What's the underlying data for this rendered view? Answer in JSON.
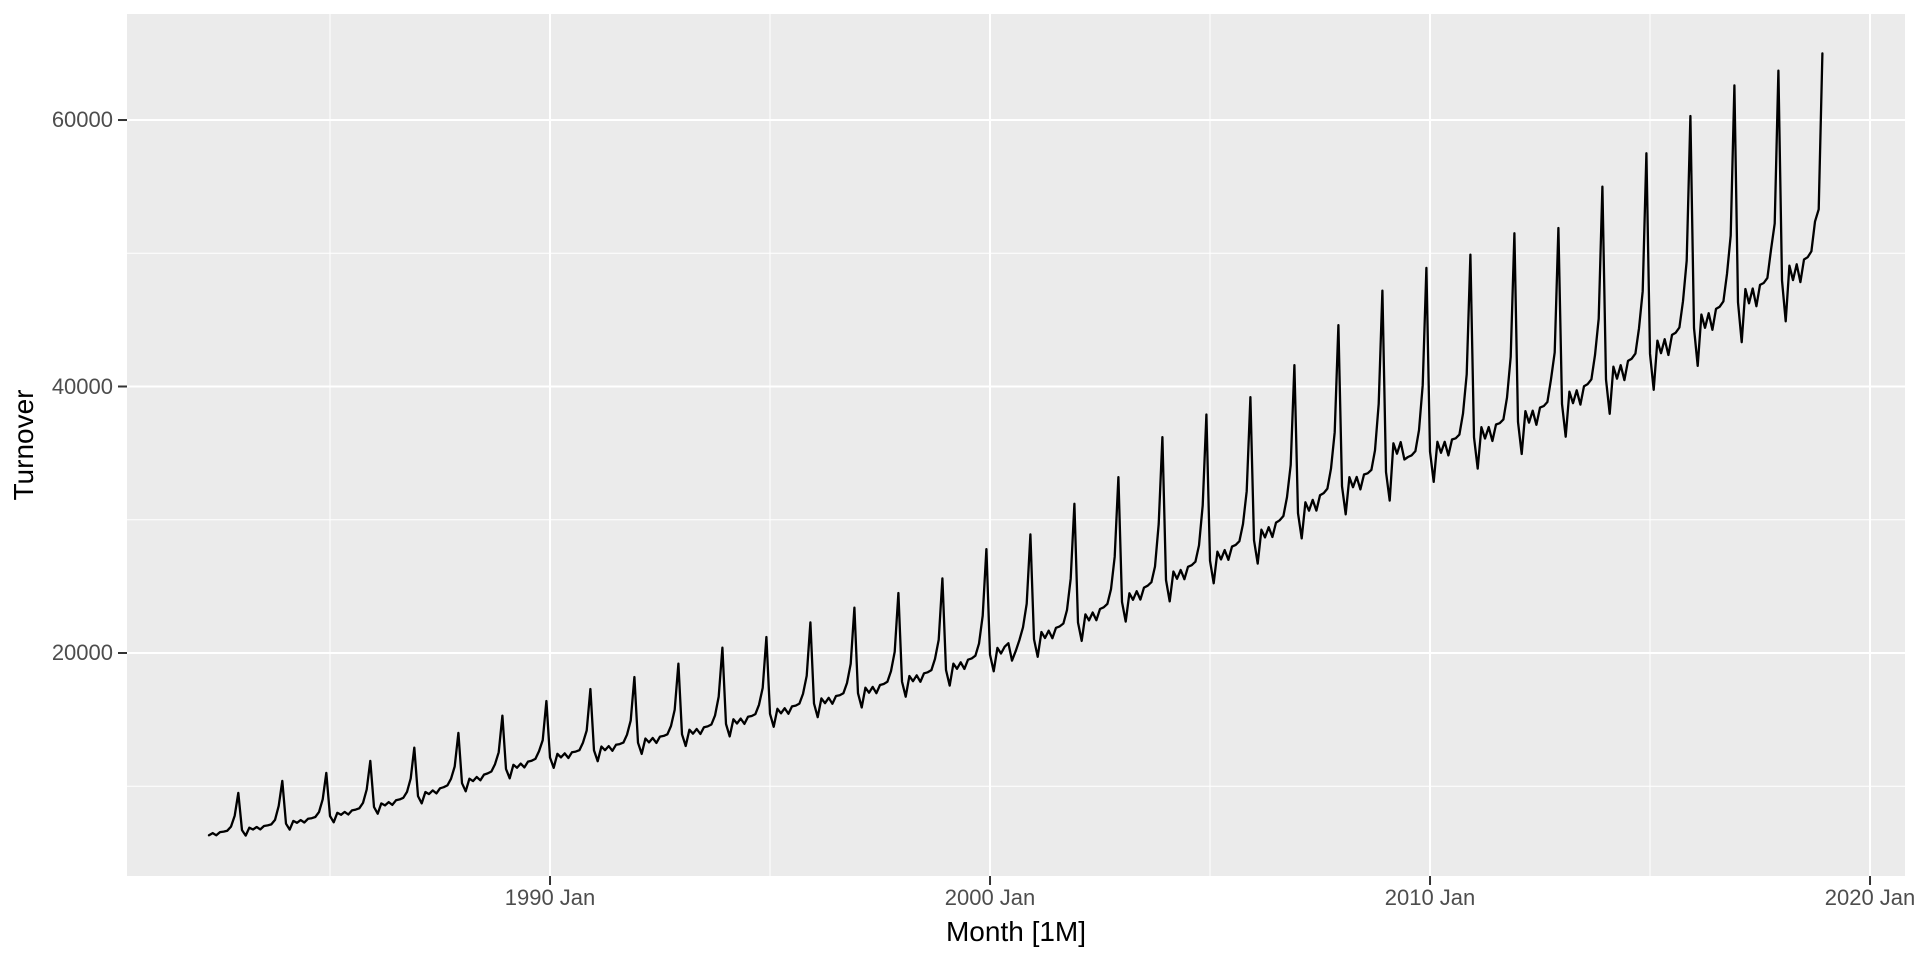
{
  "figure": {
    "kind": "ggplot2-line-chart",
    "background": "#FFFFFF",
    "panel": {
      "background": "#EBEBEB",
      "grid_major_color": "#FFFFFF",
      "grid_minor_color": "#FFFFFF",
      "tick_mark_color": "#333333",
      "tick_text_color": "#4D4D4D",
      "line_color": "#000000"
    },
    "y_axis": {
      "title": "Turnover",
      "major_ticks": [
        20000,
        40000,
        60000
      ],
      "major_tick_labels": [
        "20000",
        "40000",
        "60000"
      ],
      "minor_ticks": [
        10000,
        30000,
        50000
      ]
    },
    "x_axis": {
      "title": "Month [1M]",
      "major_ticks_decimal_years": [
        1990,
        2000,
        2010,
        2020
      ],
      "major_tick_labels": [
        "1990 Jan",
        "2000 Jan",
        "2010 Jan",
        "2020 Jan"
      ],
      "minor_ticks_decimal_years": [
        1985,
        1995,
        2005,
        2015
      ]
    }
  },
  "chart_data": {
    "type": "line",
    "title": "",
    "xlabel": "Month [1M]",
    "ylabel": "Turnover",
    "legend": "none",
    "grid": "on",
    "frequency": "monthly",
    "start_month": "1982-04",
    "end_month": "2018-12",
    "start_decimal_year": 1982.25,
    "x_domain_decimal_years": [
      1980.386,
      2020.795
    ],
    "y_domain": [
      3264,
      67957
    ],
    "values": [
      6315,
      6484,
      6320,
      6557,
      6594,
      6664,
      6975,
      7790,
      9500,
      6707,
      6293,
      6892,
      6757,
      6939,
      6764,
      7020,
      7060,
      7137,
      7471,
      8528,
      10400,
      7189,
      6750,
      7399,
      7258,
      7459,
      7277,
      7556,
      7605,
      7693,
      8058,
      9020,
      11000,
      7768,
      7297,
      8004,
      7855,
      8076,
      7883,
      8190,
      8247,
      8347,
      8747,
      9758,
      11900,
      8444,
      7939,
      8714,
      8559,
      8807,
      8603,
      8946,
      9015,
      9130,
      9575,
      10578,
      12900,
      9264,
      8715,
      9571,
      9407,
      9685,
      9466,
      9848,
      9929,
      10061,
      10557,
      11480,
      14000,
      10229,
      9622,
      10568,
      10386,
      10692,
      10450,
      10871,
      10961,
      11107,
      11654,
      12546,
      15300,
      11291,
      10598,
      11613,
      11388,
      11700,
      11411,
      11846,
      11919,
      12054,
      12623,
      13448,
      16400,
      12159,
      11381,
      12438,
      12165,
      12463,
      12123,
      12553,
      12598,
      12708,
      13273,
      14186,
      17300,
      12690,
      11880,
      12985,
      12702,
      13016,
      12663,
      13114,
      13163,
      13279,
      13872,
      14924,
      18200,
      13269,
      12424,
      13581,
      13287,
      13618,
      13250,
      13723,
      13776,
      13899,
      14523,
      15744,
      19200,
      13896,
      13020,
      14242,
      13943,
      14300,
      13923,
      14430,
      14495,
      14634,
      15300,
      16728,
      20400,
      14668,
      13740,
      15026,
      14707,
      15080,
      14679,
      15210,
      15275,
      15418,
      16116,
      17384,
      21200,
      15440,
      14460,
      15810,
      15471,
      15860,
      15435,
      15990,
      16055,
      16202,
      16932,
      18286,
      22300,
      16212,
      15180,
      16594,
      16235,
      16640,
      16191,
      16770,
      16835,
      16986,
      17748,
      19188,
      23400,
      16984,
      15908,
      17395,
      17023,
      17453,
      16986,
      17599,
      17672,
      17836,
      18641,
      20090,
      24500,
      17853,
      16718,
      18277,
      17882,
      18330,
      17837,
      18476,
      18549,
      18718,
      19559,
      20992,
      25600,
      18721,
      17550,
      19208,
      18814,
      19305,
      18806,
      19500,
      19598,
      19796,
      20706,
      22796,
      27800,
      19879,
      18630,
      20384,
      19960,
      20475,
      20736,
      19430,
      20144,
      20972,
      21930,
      23698,
      28900,
      21037,
      19717,
      21577,
      21129,
      21677,
      21113,
      21889,
      21994,
      22214,
      23231,
      25584,
      31200,
      22292,
      20910,
      22900,
      22443,
      23042,
      22460,
      23303,
      23432,
      23684,
      24786,
      27224,
      33200,
      23836,
      22358,
      24483,
      23994,
      24635,
      24011,
      24911,
      25050,
      25316,
      26495,
      29684,
      36200,
      25476,
      23873,
      26117,
      25570,
      26228,
      25539,
      26471,
      26593,
      26852,
      28076,
      31078,
      37900,
      26924,
      25230,
      27604,
      27027,
      27722,
      26996,
      27983,
      28112,
      28388,
      29682,
      32144,
      39200,
      28468,
      26708,
      29253,
      28674,
      29445,
      28704,
      29786,
      29957,
      30282,
      31697,
      34112,
      41600,
      30494,
      28598,
      31311,
      30679,
      31493,
      30689,
      31834,
      32004,
      32340,
      33839,
      36572,
      44600,
      32521,
      30413,
      33205,
      32446,
      33215,
      32279,
      33394,
      33483,
      33744,
      35216,
      38704,
      47200,
      33582,
      31440,
      35736,
      34961,
      35828,
      34521,
      34710,
      34840,
      35150,
      36720,
      40098,
      48900,
      35126,
      32843,
      35851,
      35025,
      35848,
      34831,
      36026,
      36116,
      36390,
      37970,
      40918,
      49900,
      36188,
      33840,
      36946,
      36099,
      36953,
      35910,
      37148,
      37245,
      37534,
      39168,
      42230,
      51500,
      37346,
      34935,
      38155,
      37293,
      38188,
      37123,
      38415,
      38529,
      38841,
      40545,
      42558,
      51900,
      38697,
      36233,
      39608,
      38749,
      39715,
      38643,
      40024,
      40178,
      40539,
      42356,
      45100,
      55000,
      40530,
      37950,
      41487,
      40588,
      41600,
      40478,
      41925,
      42088,
      42467,
      44370,
      47150,
      57500,
      42460,
      39750,
      43447,
      42498,
      43550,
      42368,
      43875,
      44038,
      44427,
      46410,
      49446,
      60300,
      44390,
      41550,
      45407,
      44408,
      45500,
      44258,
      45825,
      45988,
      46386,
      48450,
      51332,
      62600,
      46320,
      43328,
      47317,
      46246,
      47353,
      46029,
      47629,
      47767,
      48150,
      50261,
      52234,
      63700,
      47961,
      44895,
      49066,
      47989,
      49172,
      47833,
      49530,
      49708,
      50144,
      52377,
      53300,
      65000
    ]
  }
}
